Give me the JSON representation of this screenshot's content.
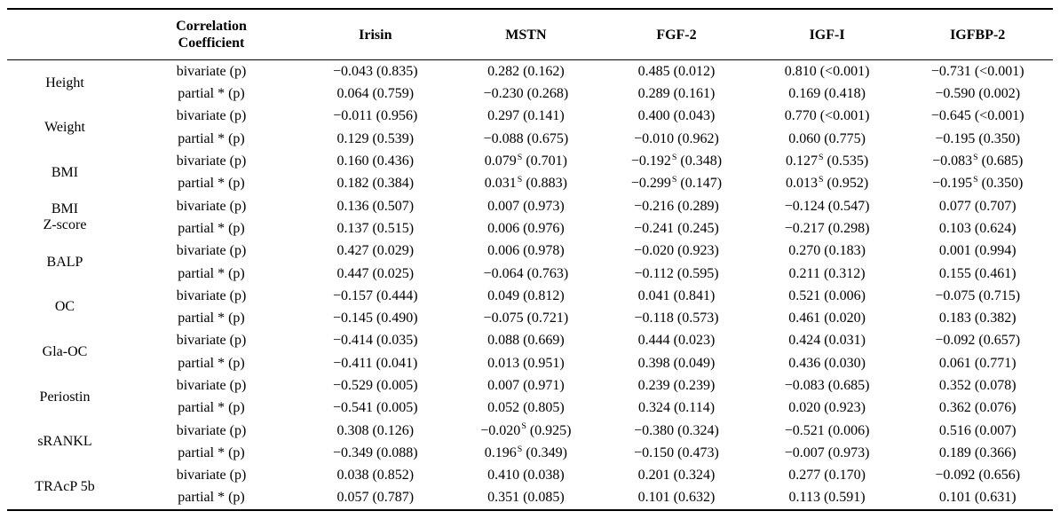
{
  "table": {
    "columns": [
      "",
      "Correlation\nCoefficient",
      "Irisin",
      "MSTN",
      "FGF-2",
      "IGF-I",
      "IGFBP-2"
    ],
    "row_types": [
      "bivariate (p)",
      "partial * (p)"
    ],
    "rows": [
      {
        "parameter": "Height",
        "bivariate": [
          "−0.043 (0.835)",
          "0.282 (0.162)",
          "0.485 (0.012)",
          "0.810 (<0.001)",
          "−0.731 (<0.001)"
        ],
        "partial": [
          "0.064 (0.759)",
          "−0.230 (0.268)",
          "0.289 (0.161)",
          "0.169 (0.418)",
          "−0.590 (0.002)"
        ]
      },
      {
        "parameter": "Weight",
        "bivariate": [
          "−0.011 (0.956)",
          "0.297 (0.141)",
          "0.400 (0.043)",
          "0.770 (<0.001)",
          "−0.645 (<0.001)"
        ],
        "partial": [
          "0.129 (0.539)",
          "−0.088 (0.675)",
          "−0.010 (0.962)",
          "0.060 (0.775)",
          "−0.195 (0.350)"
        ]
      },
      {
        "parameter": "BMI",
        "bivariate": [
          "0.160 (0.436)",
          "0.079^{S} (0.701)",
          "−0.192^{S} (0.348)",
          "0.127^{S} (0.535)",
          "−0.083^{S} (0.685)"
        ],
        "partial": [
          "0.182 (0.384)",
          "0.031^{S} (0.883)",
          "−0.299^{S} (0.147)",
          "0.013^{S} (0.952)",
          "−0.195^{S} (0.350)"
        ]
      },
      {
        "parameter": "BMI\nZ-score",
        "bivariate": [
          "0.136 (0.507)",
          "0.007 (0.973)",
          "−0.216 (0.289)",
          "−0.124 (0.547)",
          "0.077 (0.707)"
        ],
        "partial": [
          "0.137 (0.515)",
          "0.006 (0.976)",
          "−0.241 (0.245)",
          "−0.217 (0.298)",
          "0.103 (0.624)"
        ]
      },
      {
        "parameter": "BALP",
        "bivariate": [
          "0.427 (0.029)",
          "0.006 (0.978)",
          "−0.020 (0.923)",
          "0.270 (0.183)",
          "0.001 (0.994)"
        ],
        "partial": [
          "0.447 (0.025)",
          "−0.064 (0.763)",
          "−0.112 (0.595)",
          "0.211 (0.312)",
          "0.155 (0.461)"
        ]
      },
      {
        "parameter": "OC",
        "bivariate": [
          "−0.157 (0.444)",
          "0.049 (0.812)",
          "0.041 (0.841)",
          "0.521 (0.006)",
          "−0.075 (0.715)"
        ],
        "partial": [
          "−0.145 (0.490)",
          "−0.075 (0.721)",
          "−0.118 (0.573)",
          "0.461 (0.020)",
          "0.183 (0.382)"
        ]
      },
      {
        "parameter": "Gla-OC",
        "bivariate": [
          "−0.414 (0.035)",
          "0.088 (0.669)",
          "0.444 (0.023)",
          "0.424 (0.031)",
          "−0.092 (0.657)"
        ],
        "partial": [
          "−0.411 (0.041)",
          "0.013 (0.951)",
          "0.398 (0.049)",
          "0.436 (0.030)",
          "0.061 (0.771)"
        ]
      },
      {
        "parameter": "Periostin",
        "bivariate": [
          "−0.529 (0.005)",
          "0.007 (0.971)",
          "0.239 (0.239)",
          "−0.083 (0.685)",
          "0.352 (0.078)"
        ],
        "partial": [
          "−0.541 (0.005)",
          "0.052 (0.805)",
          "0.324 (0.114)",
          "0.020 (0.923)",
          "0.362 (0.076)"
        ]
      },
      {
        "parameter": "sRANKL",
        "bivariate": [
          "0.308 (0.126)",
          "−0.020^{S} (0.925)",
          "−0.380 (0.324)",
          "−0.521 (0.006)",
          "0.516 (0.007)"
        ],
        "partial": [
          "−0.349 (0.088)",
          "0.196^{S} (0.349)",
          "−0.150 (0.473)",
          "−0.007 (0.973)",
          "0.189 (0.366)"
        ]
      },
      {
        "parameter": "TRAcP 5b",
        "bivariate": [
          "0.038 (0.852)",
          "0.410 (0.038)",
          "0.201 (0.324)",
          "0.277 (0.170)",
          "−0.092 (0.656)"
        ],
        "partial": [
          "0.057 (0.787)",
          "0.351 (0.085)",
          "0.101 (0.632)",
          "0.113 (0.591)",
          "0.101 (0.631)"
        ]
      }
    ]
  }
}
